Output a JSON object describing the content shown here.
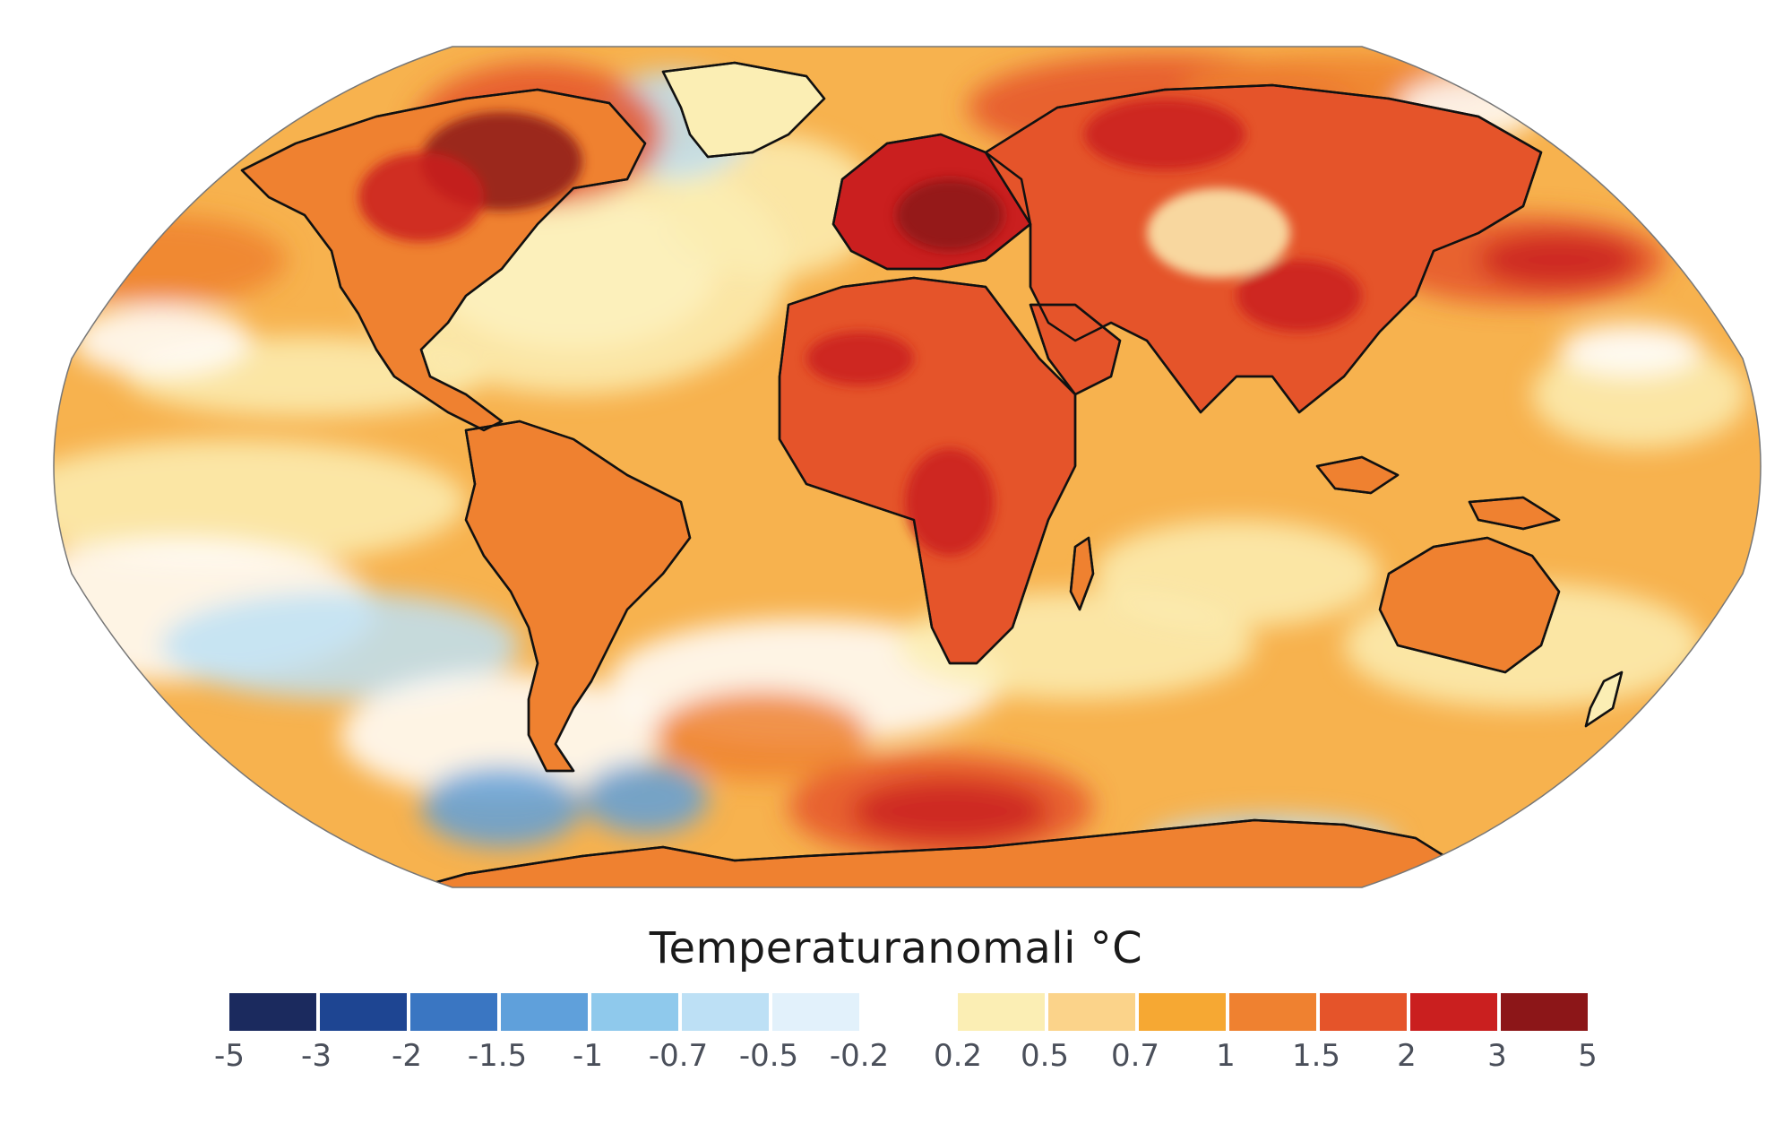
{
  "legend": {
    "title": "Temperaturanomali °C",
    "swatches": [
      {
        "from": "-5",
        "to": "-3",
        "color": "#1b2a5e"
      },
      {
        "from": "-3",
        "to": "-2",
        "color": "#1e4592"
      },
      {
        "from": "-2",
        "to": "-1.5",
        "color": "#3a76c2"
      },
      {
        "from": "-1.5",
        "to": "-1",
        "color": "#5fa0db"
      },
      {
        "from": "-1",
        "to": "-0.7",
        "color": "#8fc9ec"
      },
      {
        "from": "-0.7",
        "to": "-0.5",
        "color": "#bde0f5"
      },
      {
        "from": "-0.5",
        "to": "-0.2",
        "color": "#e2f1fb"
      },
      {
        "from": "0.2",
        "to": "0.5",
        "color": "#fbeeb4"
      },
      {
        "from": "0.5",
        "to": "0.7",
        "color": "#fbd38a"
      },
      {
        "from": "0.7",
        "to": "1",
        "color": "#f6a833"
      },
      {
        "from": "1",
        "to": "1.5",
        "color": "#ef8130"
      },
      {
        "from": "1.5",
        "to": "2",
        "color": "#e5542a"
      },
      {
        "from": "2",
        "to": "3",
        "color": "#ca1f1f"
      },
      {
        "from": "3",
        "to": "5",
        "color": "#8c1618"
      }
    ],
    "ticks": [
      "-5",
      "-3",
      "-2",
      "-1.5",
      "-1",
      "-0.7",
      "-0.5",
      "-0.2",
      "0.2",
      "0.5",
      "0.7",
      "1",
      "1.5",
      "2",
      "3",
      "5"
    ]
  },
  "map": {
    "projection": "Robinson",
    "colors": {
      "ocean_base": "#f7b24e",
      "coastline": "#111111",
      "very_hot": "#8c1618",
      "hot": "#ca1f1f",
      "warm": "#e5542a",
      "mild": "#ef8130",
      "light": "#fbeeb4",
      "neutral": "#ffffff",
      "cool": "#bde0f5",
      "cold": "#5fa0db"
    }
  }
}
